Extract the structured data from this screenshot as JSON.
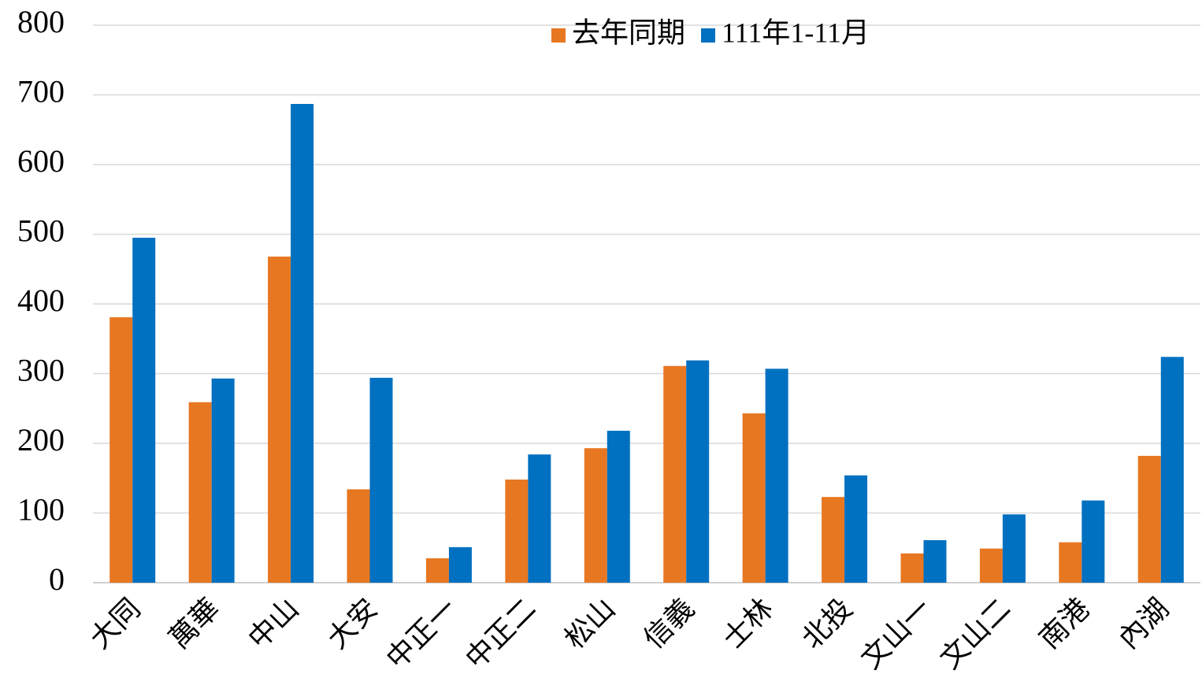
{
  "chart_data": {
    "type": "bar",
    "categories": [
      "大同",
      "萬華",
      "中山",
      "大安",
      "中正一",
      "中正二",
      "松山",
      "信義",
      "士林",
      "北投",
      "文山一",
      "文山二",
      "南港",
      "內湖"
    ],
    "series": [
      {
        "name": "去年同期",
        "color": "#e87722",
        "values": [
          381,
          259,
          468,
          134,
          35,
          148,
          193,
          311,
          243,
          123,
          42,
          49,
          58,
          182
        ]
      },
      {
        "name": "111年1-11月",
        "color": "#0070c0",
        "values": [
          495,
          293,
          687,
          294,
          51,
          184,
          218,
          319,
          307,
          154,
          61,
          98,
          118,
          324
        ]
      }
    ],
    "ylim": [
      0,
      800
    ],
    "yticks": [
      0,
      100,
      200,
      300,
      400,
      500,
      600,
      700,
      800
    ],
    "grid": true,
    "legend": "top"
  }
}
